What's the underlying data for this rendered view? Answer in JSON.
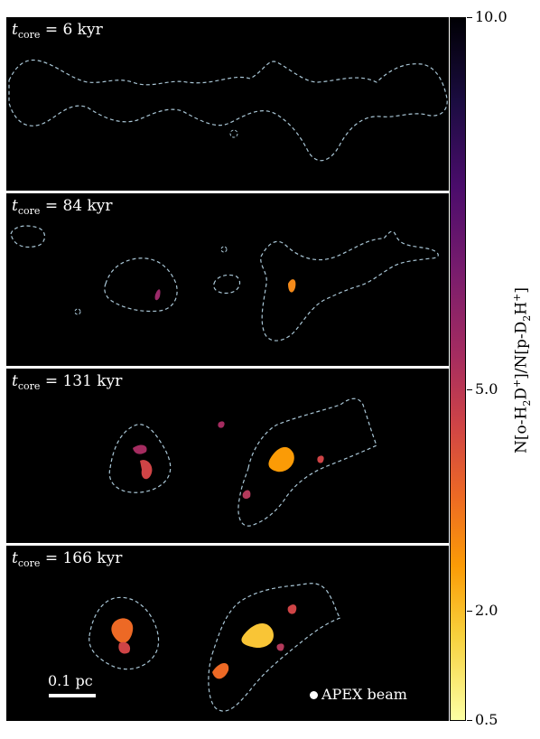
{
  "panels": [
    {
      "label_prefix": "t",
      "label_sub": "core",
      "label_value": "= 6 kyr"
    },
    {
      "label_prefix": "t",
      "label_sub": "core",
      "label_value": "= 84 kyr"
    },
    {
      "label_prefix": "t",
      "label_sub": "core",
      "label_value": "= 131 kyr"
    },
    {
      "label_prefix": "t",
      "label_sub": "core",
      "label_value": "= 166 kyr"
    }
  ],
  "colorbar": {
    "ticks": [
      "10.0",
      "5.0",
      "2.0",
      "0.5"
    ],
    "label_main": "N[o-H",
    "label_parts": [
      "2",
      "D",
      "+",
      "]/N[p-D",
      "2",
      "H",
      "+",
      "]"
    ],
    "colormap": "inferno (reversed)"
  },
  "scalebar": {
    "label": "0.1 pc"
  },
  "beam": {
    "label": "APEX beam"
  },
  "colors": {
    "contour": "#a9c6d6",
    "background": "#000000"
  }
}
